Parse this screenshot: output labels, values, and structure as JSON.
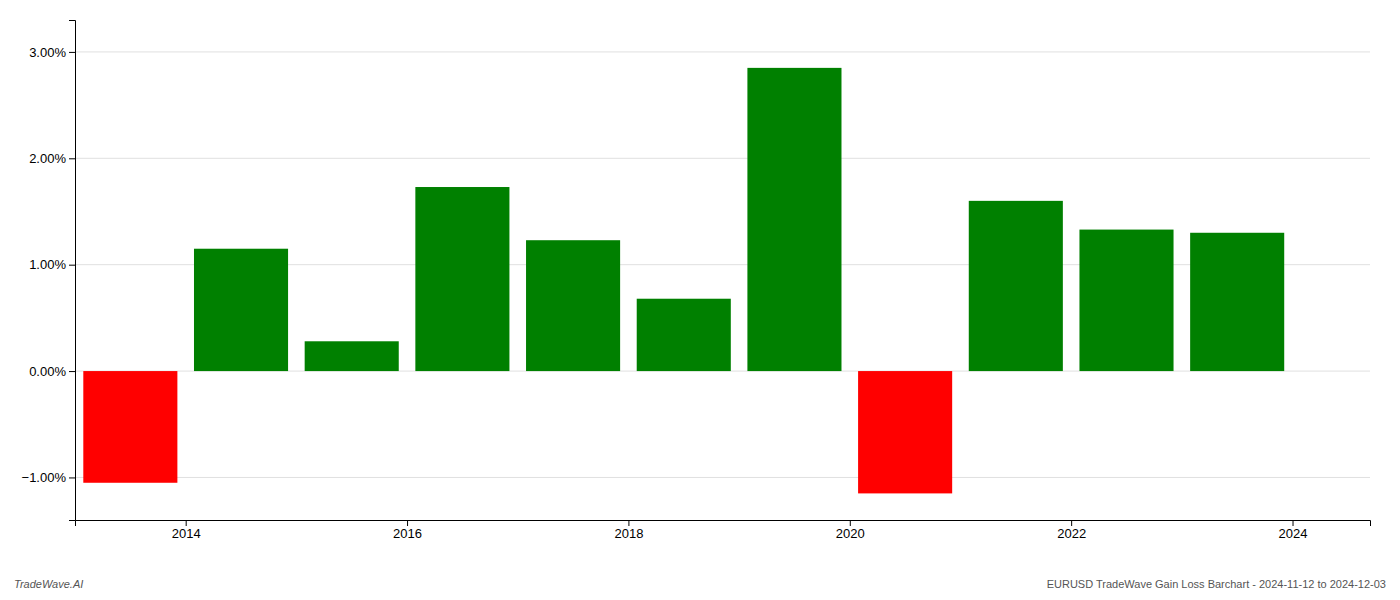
{
  "chart_data": {
    "type": "bar",
    "x": [
      2013.5,
      2014.5,
      2015.5,
      2016.5,
      2017.5,
      2018.5,
      2019.5,
      2020.5,
      2021.5,
      2022.5,
      2023.5
    ],
    "values": [
      -1.05,
      1.15,
      0.28,
      1.73,
      1.23,
      0.68,
      2.85,
      -1.15,
      1.6,
      1.33,
      1.3
    ],
    "colors": [
      "#ff0000",
      "#008000",
      "#008000",
      "#008000",
      "#008000",
      "#008000",
      "#008000",
      "#ff0000",
      "#008000",
      "#008000",
      "#008000"
    ],
    "xlim": [
      2013.0,
      2024.7
    ],
    "xticks": [
      2014,
      2016,
      2018,
      2020,
      2022,
      2024
    ],
    "ylim": [
      -1.4,
      3.3
    ],
    "yticks": [
      {
        "value": -1.0,
        "label": "−1.00%"
      },
      {
        "value": 0.0,
        "label": "0.00%"
      },
      {
        "value": 1.0,
        "label": "1.00%"
      },
      {
        "value": 2.0,
        "label": "2.00%"
      },
      {
        "value": 3.0,
        "label": "3.00%"
      }
    ],
    "grid": true,
    "annotations": [
      "TradeWave.AI",
      "EURUSD TradeWave Gain Loss Barchart - 2024-11-12 to 2024-12-03"
    ]
  }
}
